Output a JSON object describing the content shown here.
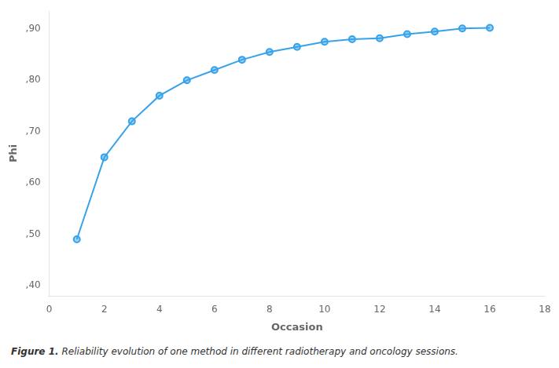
{
  "chart_data": {
    "type": "line",
    "x": [
      1,
      2,
      3,
      4,
      5,
      6,
      7,
      8,
      9,
      10,
      11,
      12,
      13,
      14,
      15,
      16
    ],
    "values": [
      0.49,
      0.65,
      0.72,
      0.77,
      0.8,
      0.82,
      0.84,
      0.855,
      0.865,
      0.875,
      0.88,
      0.882,
      0.89,
      0.895,
      0.901,
      0.902
    ],
    "xlabel": "Occasion",
    "ylabel": "Phi",
    "xlim": [
      0,
      18
    ],
    "ylim": [
      0.38,
      0.935
    ],
    "xticks": [
      0,
      2,
      4,
      6,
      8,
      10,
      12,
      14,
      16,
      18
    ],
    "yticks": [
      {
        "value": 0.4,
        "label": ",40"
      },
      {
        "value": 0.5,
        "label": ",50"
      },
      {
        "value": 0.6,
        "label": ",60"
      },
      {
        "value": 0.7,
        "label": ",70"
      },
      {
        "value": 0.8,
        "label": ",80"
      },
      {
        "value": 0.9,
        "label": ",90"
      }
    ],
    "grid": false,
    "marker": "circle",
    "caption": [
      "Figure 1.",
      "Reliability evolution of one method in different radiotherapy and oncology sessions."
    ]
  }
}
